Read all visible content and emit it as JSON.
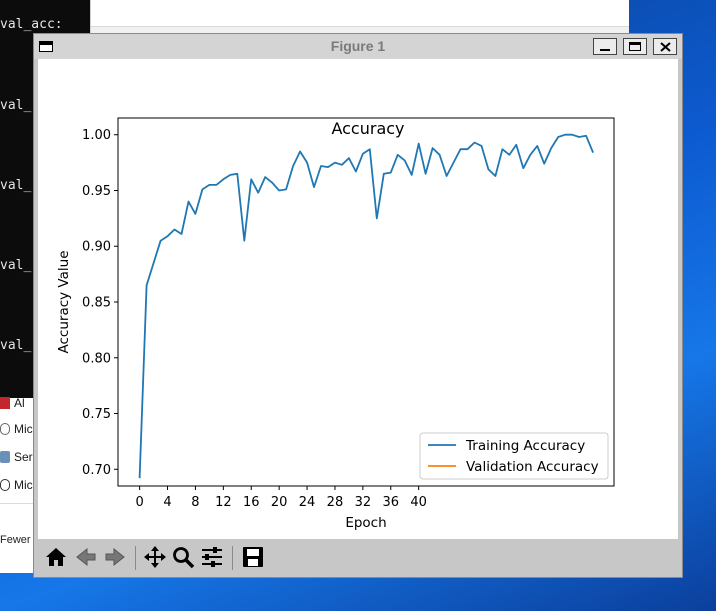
{
  "terminal": {
    "lines": [
      "val_acc:",
      "val_",
      "val_",
      "val_",
      "val_"
    ]
  },
  "explorer": {
    "items": [
      "Al",
      "Mic",
      "Ser",
      "Mic"
    ],
    "fewer_label": "Fewer"
  },
  "window": {
    "title": "Figure 1"
  },
  "toolbar": {
    "buttons": [
      "home-icon",
      "back-icon",
      "forward-icon",
      "pan-icon",
      "zoom-icon",
      "configure-icon",
      "save-icon"
    ]
  },
  "colors": {
    "training": "#1f77b4",
    "validation": "#ff7f0e"
  },
  "chart_data": {
    "type": "line",
    "title": "Accuracy",
    "xlabel": "Epoch",
    "ylabel": "Accuracy Value",
    "xlim": [
      -3.1,
      68.0
    ],
    "ylim": [
      0.685,
      1.015
    ],
    "xticks": [
      0,
      4,
      8,
      12,
      16,
      20,
      24,
      28,
      32,
      36,
      40
    ],
    "yticks": [
      0.7,
      0.75,
      0.8,
      0.85,
      0.9,
      0.95,
      1.0
    ],
    "grid": false,
    "legend_position": "lower-right",
    "series": [
      {
        "name": "Training Accuracy",
        "x": [
          0,
          1,
          2,
          3,
          4,
          5,
          6,
          7,
          8,
          9,
          10,
          11,
          12,
          13,
          14,
          15,
          16,
          17,
          18,
          19,
          20,
          21,
          22,
          23,
          24,
          25,
          26,
          27,
          28,
          29,
          30,
          31,
          32,
          33,
          34,
          35,
          36,
          37,
          38,
          39,
          40,
          41,
          42,
          43,
          44,
          45,
          46,
          47,
          48,
          49,
          50,
          51,
          52,
          53,
          54,
          55,
          56,
          57,
          58,
          59,
          60,
          61,
          62,
          63,
          64,
          65
        ],
        "values": [
          0.692,
          0.865,
          0.885,
          0.905,
          0.909,
          0.915,
          0.911,
          0.94,
          0.929,
          0.951,
          0.955,
          0.955,
          0.96,
          0.964,
          0.965,
          0.905,
          0.96,
          0.948,
          0.962,
          0.957,
          0.95,
          0.951,
          0.972,
          0.985,
          0.975,
          0.953,
          0.972,
          0.971,
          0.975,
          0.973,
          0.979,
          0.967,
          0.983,
          0.987,
          0.925,
          0.965,
          0.966,
          0.982,
          0.977,
          0.964,
          0.992,
          0.965,
          0.988,
          0.982,
          0.963,
          0.975,
          0.987,
          0.987,
          0.993,
          0.99,
          0.969,
          0.963,
          0.987,
          0.982,
          0.991,
          0.97,
          0.982,
          0.99,
          0.974,
          0.988,
          0.998,
          1.0,
          1.0,
          0.998,
          0.999,
          0.984
        ],
        "values_tail": []
      },
      {
        "name": "Validation Accuracy",
        "x": [],
        "values": []
      }
    ]
  }
}
